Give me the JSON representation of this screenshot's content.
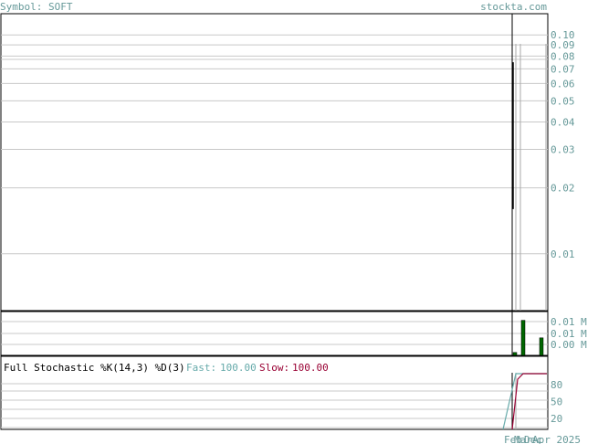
{
  "header": {
    "symbol_label": "Symbol: SOFT",
    "site": "stockta.com"
  },
  "colors": {
    "header_text": "#669999",
    "grid": "#c8c8c8",
    "axis_text": "#669999",
    "volume_bar": "#006600",
    "fast_line": "#66aaaa",
    "slow_line": "#990033",
    "price_line": "#000000"
  },
  "chart_data": [
    {
      "type": "line",
      "yscale": "log",
      "ylim": [
        0.0055,
        0.125
      ],
      "y_ticks": [
        "0.10",
        "0.09",
        "0.08",
        "0.07",
        "0.06",
        "0.05",
        "0.04",
        "0.03",
        "0.02",
        "0.01"
      ],
      "y_tick_values": [
        0.1,
        0.09,
        0.08,
        0.07,
        0.06,
        0.05,
        0.04,
        0.03,
        0.02,
        0.01
      ],
      "x_labels": [
        "Feb",
        "Mar",
        "Dec",
        "Apr 2025"
      ],
      "series": [
        {
          "values": [
            0.075,
            0.016
          ]
        }
      ]
    },
    {
      "type": "bar",
      "y_ticks": [
        "0.01 M",
        "0.01 M",
        "0.00 M"
      ],
      "values": [
        0.001,
        0.012,
        0.0,
        0.0,
        0.006
      ],
      "ylim": [
        0,
        0.015
      ]
    },
    {
      "type": "line",
      "title": "Full Stochastic %K(14,3) %D(3)",
      "fast_label": "Fast:",
      "fast_value": "100.00",
      "slow_label": "Slow:",
      "slow_value": "100.00",
      "y_ticks": [
        "80",
        "50",
        "20"
      ],
      "y_tick_values": [
        80,
        50,
        20
      ],
      "ylim": [
        0,
        100
      ],
      "series": [
        {
          "values": [
            -20,
            100,
            100,
            100,
            100
          ]
        },
        {
          "values": [
            -20,
            90,
            100,
            100,
            100
          ]
        }
      ]
    }
  ]
}
